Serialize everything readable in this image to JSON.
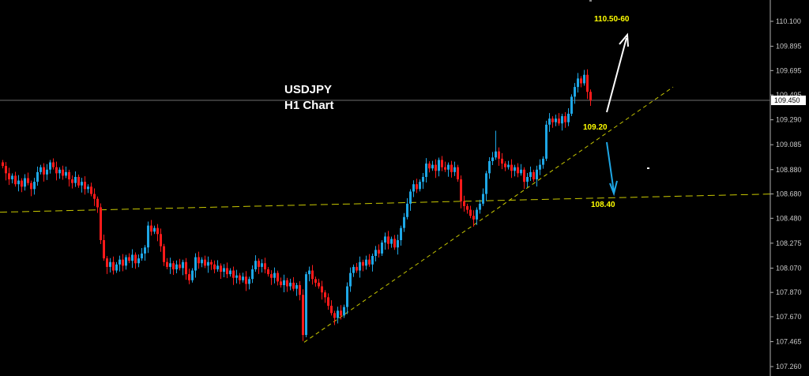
{
  "chart_data": {
    "type": "candlestick",
    "title": "USDJPY",
    "subtitle": "H1 Chart",
    "symbol": "USDJPY",
    "timeframe": "H1",
    "ylim": [
      107.26,
      110.1
    ],
    "y_ticks": [
      "110.100",
      "109.895",
      "109.695",
      "109.495",
      "109.290",
      "109.085",
      "108.880",
      "108.680",
      "108.480",
      "108.275",
      "108.070",
      "107.870",
      "107.670",
      "107.465",
      "107.260"
    ],
    "current_price": 109.45,
    "current_price_label": "109.450",
    "colors": {
      "background": "#000000",
      "bull": "#1ea7e6",
      "bear": "#ff1a1a",
      "trendline": "#c8c800",
      "price_line": "#6e6e6e",
      "annotation": "#ffff00"
    },
    "closes": [
      108.91,
      108.85,
      108.8,
      108.83,
      108.76,
      108.79,
      108.74,
      108.81,
      108.77,
      108.72,
      108.78,
      108.86,
      108.9,
      108.84,
      108.88,
      108.94,
      108.9,
      108.85,
      108.88,
      108.83,
      108.86,
      108.8,
      108.77,
      108.82,
      108.75,
      108.78,
      108.72,
      108.74,
      108.68,
      108.64,
      108.57,
      108.3,
      108.15,
      108.08,
      108.12,
      108.05,
      108.1,
      108.14,
      108.09,
      108.16,
      108.13,
      108.18,
      108.11,
      108.15,
      108.19,
      108.24,
      108.42,
      108.37,
      108.4,
      108.35,
      108.25,
      108.12,
      108.08,
      108.11,
      108.06,
      108.1,
      108.07,
      108.12,
      108.02,
      107.97,
      108.05,
      108.16,
      108.11,
      108.14,
      108.09,
      108.12,
      108.1,
      108.06,
      108.09,
      108.04,
      108.07,
      108.02,
      108.05,
      107.99,
      108.01,
      107.97,
      108.0,
      107.94,
      107.98,
      108.06,
      108.13,
      108.08,
      108.11,
      108.06,
      108.02,
      107.99,
      108.03,
      107.96,
      107.93,
      107.97,
      107.92,
      107.95,
      107.9,
      107.93,
      107.85,
      107.52,
      108.02,
      108.05,
      107.98,
      107.95,
      107.92,
      107.87,
      107.83,
      107.76,
      107.7,
      107.66,
      107.72,
      107.68,
      107.75,
      107.92,
      108.03,
      108.08,
      108.05,
      108.12,
      108.09,
      108.14,
      108.1,
      108.17,
      108.22,
      108.19,
      108.28,
      108.33,
      108.27,
      108.31,
      108.24,
      108.3,
      108.4,
      108.49,
      108.6,
      108.7,
      108.76,
      108.72,
      108.78,
      108.82,
      108.93,
      108.89,
      108.92,
      108.87,
      108.96,
      108.9,
      108.88,
      108.92,
      108.86,
      108.9,
      108.8,
      108.62,
      108.58,
      108.55,
      108.5,
      108.47,
      108.55,
      108.6,
      108.68,
      108.85,
      108.95,
      108.98,
      109.03,
      108.97,
      108.93,
      108.9,
      108.92,
      108.87,
      108.9,
      108.85,
      108.88,
      108.78,
      108.82,
      108.86,
      108.8,
      108.88,
      108.92,
      108.97,
      109.25,
      109.3,
      109.27,
      109.3,
      109.26,
      109.32,
      109.27,
      109.34,
      109.48,
      109.56,
      109.63,
      109.59,
      109.66,
      109.52,
      109.45
    ],
    "wick_extremes": [
      {
        "index": 95,
        "low": 107.47
      },
      {
        "index": 156,
        "high": 109.2
      },
      {
        "index": 184,
        "high": 109.7
      }
    ],
    "trendlines": [
      {
        "name": "support",
        "from": {
          "index": -0.5,
          "price": 108.53
        },
        "to": {
          "index": 244.5,
          "price": 108.68
        }
      },
      {
        "name": "rising",
        "from": {
          "index": 95.75,
          "price": 107.46
        },
        "to": {
          "index": 212.5,
          "price": 109.56
        }
      }
    ],
    "annotations": {
      "target_up": "110.50-60",
      "pivot": "109.20",
      "target_down": "108.40"
    }
  }
}
